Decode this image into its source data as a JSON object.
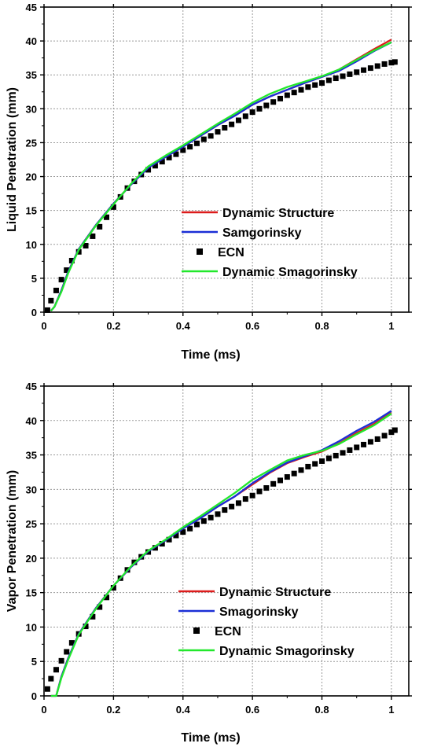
{
  "chart_data": [
    {
      "type": "line",
      "xlabel": "Time (ms)",
      "ylabel": "Liquid Penetration (mm)",
      "xlim": [
        0,
        1.05
      ],
      "ylim": [
        0,
        45
      ],
      "xticks": [
        0,
        0.2,
        0.4,
        0.6,
        0.8,
        1
      ],
      "xtick_labels": [
        "0",
        "0.2",
        "0.4",
        "0.6",
        "0.8",
        "1"
      ],
      "yticks": [
        0,
        5,
        10,
        15,
        20,
        25,
        30,
        35,
        40,
        45
      ],
      "ytick_labels": [
        "0",
        "5",
        "10",
        "15",
        "20",
        "25",
        "30",
        "35",
        "40",
        "45"
      ],
      "grid": true,
      "legend_position": "bottom-right",
      "series": [
        {
          "name": "Dynamic Structure",
          "color": "#dd1c1c",
          "style": "line",
          "x": [
            0.02,
            0.03,
            0.05,
            0.07,
            0.1,
            0.15,
            0.2,
            0.25,
            0.3,
            0.35,
            0.4,
            0.45,
            0.5,
            0.55,
            0.6,
            0.65,
            0.7,
            0.75,
            0.8,
            0.85,
            0.9,
            0.95,
            1.0
          ],
          "y": [
            0.2,
            0.8,
            3.2,
            6.0,
            9.3,
            12.9,
            16.0,
            18.8,
            21.3,
            22.9,
            24.4,
            26.0,
            27.6,
            29.0,
            30.6,
            31.8,
            32.8,
            33.8,
            34.7,
            35.8,
            37.3,
            38.8,
            40.2
          ]
        },
        {
          "name": "Samgorinsky",
          "color": "#1b2fd6",
          "style": "line",
          "x": [
            0.02,
            0.03,
            0.05,
            0.07,
            0.1,
            0.15,
            0.2,
            0.25,
            0.3,
            0.35,
            0.4,
            0.45,
            0.5,
            0.55,
            0.6,
            0.65,
            0.7,
            0.75,
            0.8,
            0.85,
            0.9,
            0.95,
            1.0
          ],
          "y": [
            0.2,
            0.8,
            3.2,
            6.0,
            9.3,
            12.9,
            16.0,
            18.8,
            21.3,
            22.9,
            24.4,
            26.0,
            27.6,
            29.0,
            30.6,
            31.8,
            32.8,
            33.8,
            34.7,
            35.6,
            37.0,
            38.5,
            39.8
          ]
        },
        {
          "name": "ECN",
          "color": "#000000",
          "style": "marker",
          "x": [
            0.01,
            0.02,
            0.035,
            0.05,
            0.065,
            0.08,
            0.1,
            0.12,
            0.14,
            0.16,
            0.18,
            0.2,
            0.22,
            0.24,
            0.26,
            0.28,
            0.3,
            0.32,
            0.34,
            0.36,
            0.38,
            0.4,
            0.42,
            0.44,
            0.46,
            0.48,
            0.5,
            0.52,
            0.54,
            0.56,
            0.58,
            0.6,
            0.62,
            0.64,
            0.66,
            0.68,
            0.7,
            0.72,
            0.74,
            0.76,
            0.78,
            0.8,
            0.82,
            0.84,
            0.86,
            0.88,
            0.9,
            0.92,
            0.94,
            0.96,
            0.98,
            1.0,
            1.01
          ],
          "y": [
            0.3,
            1.7,
            3.2,
            4.8,
            6.2,
            7.6,
            8.9,
            9.8,
            11.2,
            12.6,
            14.0,
            15.5,
            17.0,
            18.3,
            19.3,
            20.3,
            21.0,
            21.6,
            22.2,
            22.8,
            23.3,
            23.9,
            24.4,
            24.9,
            25.5,
            26.0,
            26.6,
            27.2,
            27.7,
            28.3,
            28.9,
            29.5,
            30.0,
            30.5,
            31.0,
            31.5,
            32.0,
            32.4,
            32.8,
            33.2,
            33.5,
            33.8,
            34.2,
            34.5,
            34.8,
            35.1,
            35.4,
            35.7,
            36.0,
            36.3,
            36.6,
            36.8,
            36.9
          ]
        },
        {
          "name": "Dynamic Smagorinsky",
          "color": "#22e82c",
          "style": "line",
          "x": [
            0.02,
            0.03,
            0.05,
            0.07,
            0.1,
            0.15,
            0.2,
            0.25,
            0.3,
            0.35,
            0.4,
            0.45,
            0.5,
            0.55,
            0.6,
            0.65,
            0.7,
            0.75,
            0.8,
            0.85,
            0.9,
            0.95,
            1.0
          ],
          "y": [
            0.2,
            0.8,
            3.0,
            5.8,
            9.2,
            12.8,
            15.9,
            18.9,
            21.5,
            23.1,
            24.6,
            26.2,
            27.8,
            29.3,
            30.9,
            32.2,
            33.2,
            34.0,
            34.8,
            35.8,
            37.2,
            38.6,
            39.8
          ]
        }
      ]
    },
    {
      "type": "line",
      "xlabel": "Time (ms)",
      "ylabel": "Vapor Penetration (mm)",
      "xlim": [
        0,
        1.05
      ],
      "ylim": [
        0,
        45
      ],
      "xticks": [
        0,
        0.2,
        0.4,
        0.6,
        0.8,
        1
      ],
      "xtick_labels": [
        "0",
        "0.2",
        "0.4",
        "0.6",
        "0.8",
        "1"
      ],
      "yticks": [
        0,
        5,
        10,
        15,
        20,
        25,
        30,
        35,
        40,
        45
      ],
      "ytick_labels": [
        "0",
        "5",
        "10",
        "15",
        "20",
        "25",
        "30",
        "35",
        "40",
        "45"
      ],
      "grid": true,
      "legend_position": "bottom-right",
      "series": [
        {
          "name": "Dynamic Structure",
          "color": "#dd1c1c",
          "style": "line",
          "x": [
            0.02,
            0.035,
            0.05,
            0.07,
            0.1,
            0.15,
            0.2,
            0.25,
            0.3,
            0.35,
            0.4,
            0.45,
            0.5,
            0.55,
            0.6,
            0.65,
            0.7,
            0.75,
            0.8,
            0.85,
            0.9,
            0.95,
            1.0
          ],
          "y": [
            0.0,
            0.0,
            2.8,
            5.5,
            9.0,
            12.8,
            16.0,
            18.7,
            21.0,
            22.6,
            24.3,
            25.8,
            27.5,
            29.0,
            30.7,
            32.4,
            33.8,
            34.7,
            35.5,
            36.7,
            38.2,
            39.5,
            41.1
          ]
        },
        {
          "name": "Smagorinsky",
          "color": "#1b2fd6",
          "style": "line",
          "x": [
            0.02,
            0.035,
            0.05,
            0.07,
            0.1,
            0.15,
            0.2,
            0.25,
            0.3,
            0.35,
            0.4,
            0.45,
            0.5,
            0.55,
            0.6,
            0.65,
            0.7,
            0.75,
            0.8,
            0.85,
            0.9,
            0.95,
            1.0
          ],
          "y": [
            0.0,
            0.0,
            2.8,
            5.5,
            9.0,
            12.8,
            16.0,
            18.7,
            21.0,
            22.6,
            24.3,
            25.8,
            27.5,
            29.0,
            30.9,
            32.5,
            33.9,
            34.8,
            35.7,
            37.0,
            38.5,
            39.8,
            41.4
          ]
        },
        {
          "name": "ECN",
          "color": "#000000",
          "style": "marker",
          "x": [
            0.01,
            0.02,
            0.035,
            0.05,
            0.065,
            0.08,
            0.1,
            0.12,
            0.14,
            0.16,
            0.18,
            0.2,
            0.22,
            0.24,
            0.26,
            0.28,
            0.3,
            0.32,
            0.34,
            0.36,
            0.38,
            0.4,
            0.42,
            0.44,
            0.46,
            0.48,
            0.5,
            0.52,
            0.54,
            0.56,
            0.58,
            0.6,
            0.62,
            0.64,
            0.66,
            0.68,
            0.7,
            0.72,
            0.74,
            0.76,
            0.78,
            0.8,
            0.82,
            0.84,
            0.86,
            0.88,
            0.9,
            0.92,
            0.94,
            0.96,
            0.98,
            1.0,
            1.01
          ],
          "y": [
            1.0,
            2.5,
            3.8,
            5.1,
            6.4,
            7.7,
            9.0,
            10.1,
            11.5,
            12.9,
            14.3,
            15.7,
            17.1,
            18.3,
            19.4,
            20.2,
            20.9,
            21.5,
            22.1,
            22.7,
            23.3,
            23.8,
            24.3,
            24.9,
            25.4,
            25.9,
            26.4,
            27.0,
            27.5,
            28.0,
            28.6,
            29.1,
            29.7,
            30.2,
            30.8,
            31.3,
            31.8,
            32.3,
            32.8,
            33.3,
            33.7,
            34.1,
            34.5,
            34.9,
            35.3,
            35.7,
            36.1,
            36.5,
            36.9,
            37.3,
            37.8,
            38.3,
            38.6
          ]
        },
        {
          "name": "Dynamic Smagorinsky",
          "color": "#22e82c",
          "style": "line",
          "x": [
            0.02,
            0.035,
            0.05,
            0.07,
            0.1,
            0.15,
            0.2,
            0.25,
            0.3,
            0.35,
            0.4,
            0.45,
            0.5,
            0.55,
            0.6,
            0.65,
            0.7,
            0.75,
            0.8,
            0.85,
            0.9,
            0.95,
            1.0
          ],
          "y": [
            0.0,
            0.0,
            2.6,
            5.3,
            8.9,
            12.7,
            16.0,
            18.8,
            21.1,
            22.7,
            24.5,
            26.1,
            27.8,
            29.5,
            31.4,
            32.8,
            34.2,
            35.0,
            35.6,
            36.6,
            38.0,
            39.3,
            41.0
          ]
        }
      ]
    }
  ]
}
